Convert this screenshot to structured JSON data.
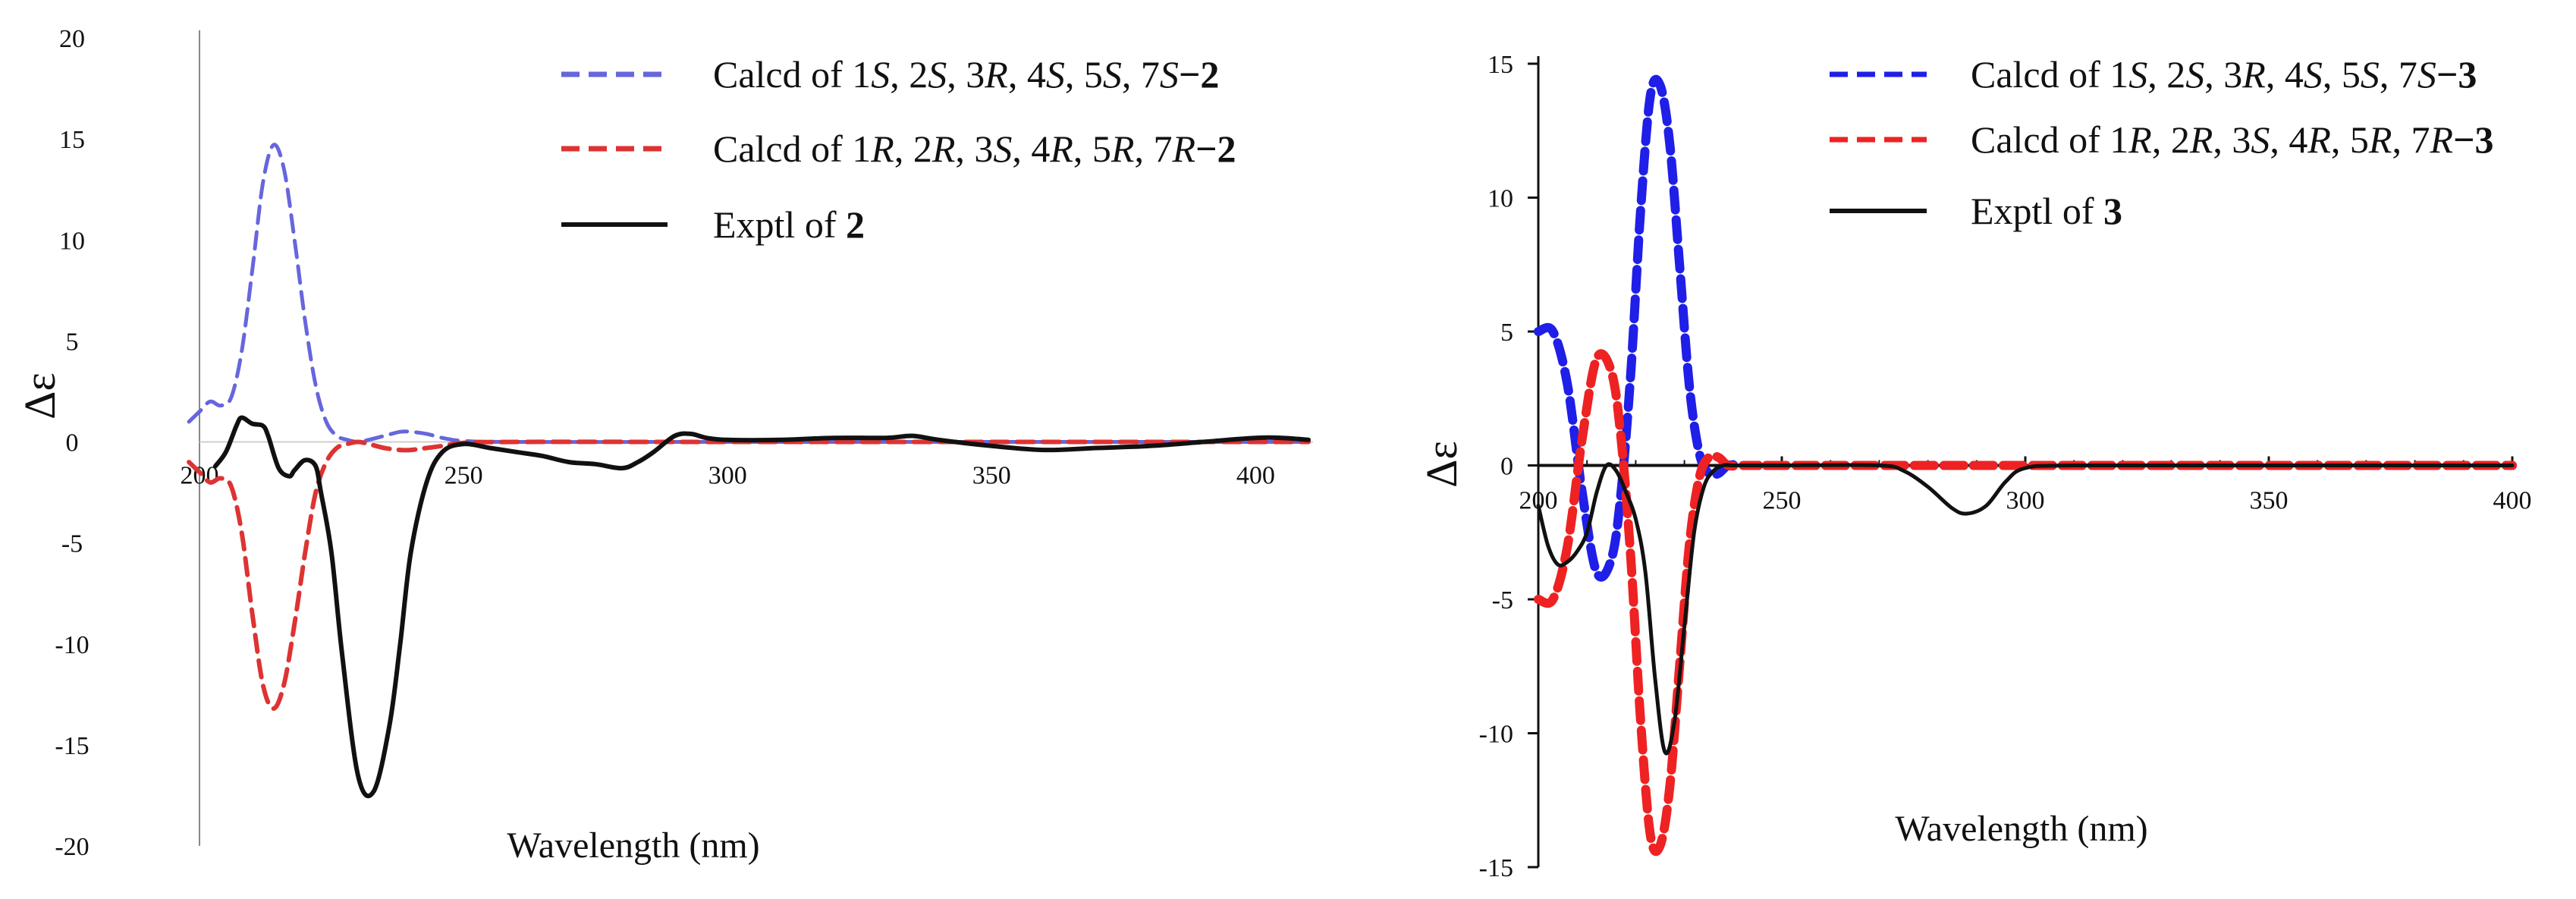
{
  "chart_data": [
    {
      "type": "line",
      "xlabel": "Wavelength (nm)",
      "ylabel": "Δε",
      "xlim": [
        200,
        410
      ],
      "ylim": [
        -20,
        20
      ],
      "x_ticks": [
        "200",
        "250",
        "300",
        "350",
        "400"
      ],
      "y_ticks": [
        "20",
        "15",
        "10",
        "5",
        "0",
        "-5",
        "-10",
        "-15",
        "-20"
      ],
      "grid": false,
      "legend_position": "top-right",
      "series": [
        {
          "name": "Calcd of 1S, 2S, 3R, 4S, 5S, 7S−2",
          "color": "#6666dd",
          "dash": "dashed",
          "x": [
            198,
            200,
            202,
            204,
            206,
            208,
            210,
            212,
            214,
            216,
            218,
            220,
            222,
            224,
            226,
            228,
            230,
            232,
            235,
            238,
            240,
            243,
            246,
            250,
            260,
            300,
            350,
            410
          ],
          "y": [
            1.0,
            1.5,
            2.0,
            1.8,
            2.2,
            4.5,
            8.5,
            12.8,
            14.7,
            13.5,
            10.0,
            6.0,
            2.8,
            1.0,
            0.3,
            0.1,
            0.0,
            0.1,
            0.3,
            0.5,
            0.5,
            0.4,
            0.2,
            0.05,
            0.0,
            0.0,
            0.0,
            0.0
          ]
        },
        {
          "name": "Calcd of 1R, 2R, 3S, 4R, 5R, 7R−2",
          "color": "#dd3333",
          "dash": "dashed",
          "x": [
            198,
            200,
            202,
            204,
            206,
            208,
            210,
            212,
            214,
            216,
            218,
            220,
            222,
            224,
            226,
            228,
            230,
            232,
            235,
            238,
            240,
            243,
            246,
            250,
            260,
            300,
            350,
            410
          ],
          "y": [
            -1.0,
            -1.5,
            -2.0,
            -1.8,
            -2.2,
            -4.5,
            -8.5,
            -12.0,
            -13.2,
            -12.0,
            -9.0,
            -5.5,
            -2.5,
            -1.0,
            -0.3,
            -0.1,
            0.0,
            -0.1,
            -0.3,
            -0.4,
            -0.4,
            -0.3,
            -0.2,
            -0.05,
            0.0,
            0.0,
            0.0,
            0.0
          ]
        },
        {
          "name": "Exptl of 2",
          "color": "#111111",
          "dash": "solid",
          "x": [
            203,
            205,
            207,
            208,
            210,
            212,
            213,
            215,
            217,
            218,
            220,
            222,
            223,
            225,
            227,
            230,
            233,
            236,
            238,
            240,
            243,
            246,
            250,
            255,
            260,
            265,
            270,
            275,
            280,
            283,
            286,
            290,
            293,
            296,
            300,
            310,
            320,
            330,
            335,
            340,
            350,
            360,
            370,
            380,
            390,
            400,
            405,
            410
          ],
          "y": [
            -1.2,
            -0.5,
            0.8,
            1.2,
            0.9,
            0.8,
            0.3,
            -1.3,
            -1.7,
            -1.4,
            -0.9,
            -1.2,
            -2.5,
            -5.5,
            -10.5,
            -16.5,
            -17.3,
            -14.0,
            -10.0,
            -5.5,
            -2.0,
            -0.5,
            -0.1,
            -0.3,
            -0.5,
            -0.7,
            -1.0,
            -1.1,
            -1.3,
            -1.0,
            -0.5,
            0.3,
            0.4,
            0.2,
            0.1,
            0.1,
            0.2,
            0.2,
            0.3,
            0.1,
            -0.2,
            -0.4,
            -0.3,
            -0.2,
            0.0,
            0.2,
            0.2,
            0.1
          ]
        }
      ]
    },
    {
      "type": "line",
      "xlabel": "Wavelength (nm)",
      "ylabel": "Δε",
      "xlim": [
        200,
        400
      ],
      "ylim": [
        -15,
        15
      ],
      "x_ticks": [
        "200",
        "250",
        "300",
        "350",
        "400"
      ],
      "y_ticks": [
        "15",
        "10",
        "5",
        "0",
        "-5",
        "-10",
        "-15"
      ],
      "grid": false,
      "legend_position": "top-right",
      "series": [
        {
          "name": "Calcd of 1S, 2S, 3R, 4S, 5S, 7S−3",
          "color": "#1f1fe8",
          "dash": "dashed",
          "x": [
            200,
            203,
            206,
            209,
            212,
            215,
            217,
            219,
            221,
            223,
            225,
            227,
            229,
            231,
            233,
            235,
            237,
            239,
            242,
            245,
            250,
            300,
            350,
            400
          ],
          "y": [
            5.0,
            5.0,
            3.0,
            -1.0,
            -4.0,
            -3.5,
            -1.0,
            3.5,
            9.5,
            13.8,
            14.2,
            12.0,
            7.5,
            3.0,
            0.5,
            -0.3,
            -0.3,
            0.0,
            0.0,
            0.0,
            0.0,
            0.0,
            0.0,
            0.0
          ]
        },
        {
          "name": "Calcd of 1R, 2R, 3S, 4R, 5R, 7R−3",
          "color": "#ee2222",
          "dash": "dashed",
          "x": [
            200,
            203,
            206,
            209,
            212,
            215,
            217,
            219,
            221,
            223,
            225,
            227,
            229,
            231,
            233,
            235,
            237,
            239,
            242,
            245,
            250,
            300,
            350,
            400
          ],
          "y": [
            -5.0,
            -5.0,
            -3.0,
            1.0,
            4.0,
            3.5,
            1.0,
            -3.5,
            -9.5,
            -13.8,
            -14.2,
            -12.0,
            -7.5,
            -3.0,
            -0.5,
            0.3,
            0.3,
            0.0,
            0.0,
            0.0,
            0.0,
            0.0,
            0.0,
            0.0
          ]
        },
        {
          "name": "Exptl of 3",
          "color": "#111111",
          "dash": "solid",
          "x": [
            200,
            202,
            204,
            206,
            208,
            210,
            212,
            214,
            216,
            218,
            220,
            222,
            224,
            226,
            228,
            230,
            232,
            234,
            236,
            238,
            240,
            245,
            250,
            270,
            275,
            280,
            285,
            288,
            292,
            296,
            300,
            310,
            350,
            400
          ],
          "y": [
            -1.5,
            -3.0,
            -3.7,
            -3.6,
            -3.2,
            -2.5,
            -1.0,
            0.0,
            -0.2,
            -1.0,
            -2.0,
            -4.0,
            -8.0,
            -10.7,
            -9.5,
            -6.0,
            -2.5,
            -0.8,
            -0.2,
            0.0,
            0.0,
            0.0,
            0.0,
            0.0,
            -0.2,
            -0.8,
            -1.6,
            -1.8,
            -1.5,
            -0.6,
            -0.1,
            0.0,
            0.0,
            0.0
          ]
        }
      ]
    }
  ]
}
